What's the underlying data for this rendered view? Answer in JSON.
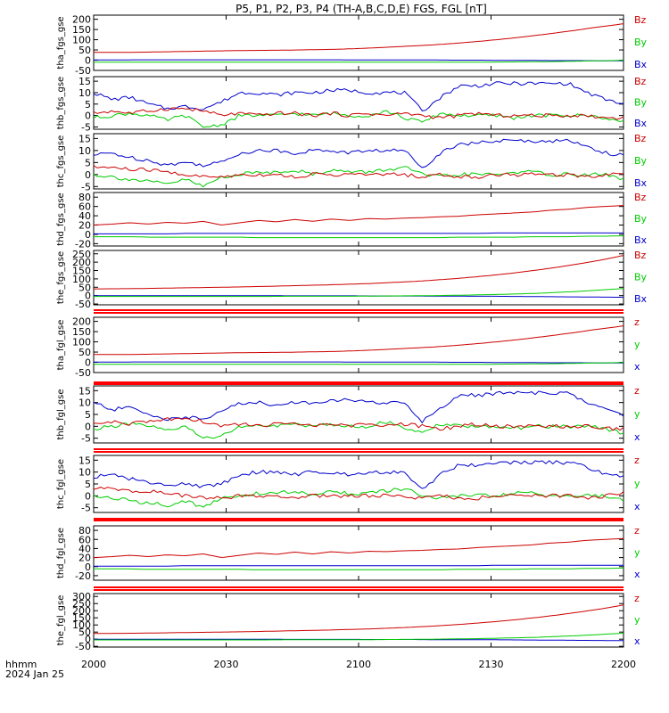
{
  "title": "P5, P1, P2, P3, P4 (TH-A,B,C,D,E) FGS, FGL [nT]",
  "time_axis": {
    "corner_label": "hhmm",
    "date": "2024 Jan 25",
    "ticks": [
      "2000",
      "2030",
      "2100",
      "2130",
      "2200"
    ]
  },
  "colors": {
    "x": "#0000cc",
    "y": "#00cc00",
    "z": "#cc0000",
    "flag": "#ff0000"
  },
  "chart_data": [
    {
      "type": "line",
      "ylabel": "tha_fgs_gse",
      "ylim": [
        -50,
        220
      ],
      "yticks": [
        "-50",
        "0",
        "50",
        "100",
        "150",
        "200"
      ],
      "legend": [
        "Bz",
        "By",
        "Bx"
      ],
      "series": [
        {
          "name": "Bz",
          "component": "z",
          "values": [
            38,
            38,
            39,
            41,
            43,
            45,
            47,
            48,
            49,
            51,
            53,
            57,
            62,
            68,
            74,
            82,
            92,
            103,
            116,
            130,
            146,
            163,
            178
          ]
        },
        {
          "name": "By",
          "component": "y",
          "values": [
            -10,
            -10,
            -10,
            -10,
            -10,
            -10,
            -10,
            -10,
            -10,
            -10,
            -10,
            -10,
            -10,
            -10,
            -10,
            -10,
            -10,
            -9,
            -8,
            -7,
            -5,
            -3,
            -1
          ]
        },
        {
          "name": "Bx",
          "component": "x",
          "values": [
            1,
            1,
            2,
            2,
            2,
            2,
            2,
            2,
            2,
            2,
            2,
            1,
            1,
            1,
            1,
            0,
            0,
            -1,
            -1,
            -2,
            -2,
            -3,
            -3
          ]
        }
      ]
    },
    {
      "type": "line",
      "ylabel": "thb_fgs_gse",
      "ylim": [
        -6,
        17
      ],
      "yticks": [
        "-5",
        "0",
        "5",
        "10",
        "15"
      ],
      "legend": [
        "Bz",
        "By",
        "Bx"
      ],
      "series": [
        {
          "name": "Bz",
          "component": "z",
          "values": [
            1,
            2,
            1,
            2,
            3,
            3,
            2,
            0,
            1,
            0,
            1,
            1,
            0,
            1,
            0,
            1,
            0,
            1,
            0,
            -1,
            0,
            1,
            0,
            0,
            0,
            0,
            0,
            0,
            -1,
            -1
          ]
        },
        {
          "name": "By",
          "component": "y",
          "values": [
            -1,
            0,
            1,
            0,
            -2,
            0,
            -5,
            -4,
            0,
            0,
            0,
            1,
            0,
            1,
            0,
            0,
            2,
            -1,
            -3,
            1,
            0,
            0,
            0,
            -1,
            0,
            0,
            0,
            0,
            -1,
            -3
          ]
        },
        {
          "name": "Bx",
          "component": "x",
          "values": [
            10,
            7,
            8,
            5,
            3,
            4,
            3,
            6,
            10,
            10,
            9,
            10,
            10,
            11,
            11,
            10,
            10,
            10,
            2,
            8,
            13,
            13,
            14,
            14,
            14,
            14,
            14,
            10,
            7,
            5
          ]
        }
      ]
    },
    {
      "type": "line",
      "ylabel": "thc_fgs_gse",
      "ylim": [
        -6,
        17
      ],
      "yticks": [
        "-5",
        "0",
        "5",
        "10",
        "15"
      ],
      "legend": [
        "Bz",
        "By",
        "Bx"
      ],
      "series": [
        {
          "name": "Bz",
          "component": "z",
          "values": [
            3,
            3,
            2,
            2,
            1,
            0,
            -1,
            -1,
            0,
            0,
            0,
            -1,
            0,
            0,
            0,
            0,
            0,
            0,
            -1,
            0,
            -1,
            -1,
            0,
            0,
            0,
            0,
            0,
            -1,
            0,
            1
          ]
        },
        {
          "name": "By",
          "component": "y",
          "values": [
            0,
            -1,
            -2,
            -3,
            -4,
            -2,
            -5,
            -1,
            0,
            1,
            1,
            2,
            0,
            2,
            1,
            1,
            2,
            3,
            0,
            -1,
            0,
            0,
            0,
            1,
            1,
            0,
            0,
            0,
            0,
            -2
          ]
        },
        {
          "name": "Bx",
          "component": "x",
          "values": [
            8,
            9,
            7,
            6,
            4,
            5,
            4,
            5,
            9,
            10,
            10,
            9,
            10,
            10,
            9,
            10,
            10,
            10,
            3,
            9,
            13,
            13,
            14,
            14,
            14,
            14,
            14,
            12,
            9,
            8
          ]
        }
      ]
    },
    {
      "type": "line",
      "ylabel": "thd_fgs_gse",
      "ylim": [
        -25,
        90
      ],
      "yticks": [
        "-20",
        "0",
        "20",
        "40",
        "60",
        "80"
      ],
      "legend": [
        "Bz",
        "By",
        "Bx"
      ],
      "series": [
        {
          "name": "Bz",
          "component": "z",
          "values": [
            20,
            22,
            25,
            22,
            26,
            24,
            28,
            20,
            25,
            30,
            27,
            32,
            28,
            33,
            30,
            34,
            33,
            35,
            36,
            38,
            39,
            42,
            44,
            46,
            48,
            52,
            54,
            58,
            60,
            62
          ]
        },
        {
          "name": "By",
          "component": "y",
          "values": [
            -5,
            -5,
            -5,
            -6,
            -6,
            -6,
            -6,
            -6,
            -6,
            -7,
            -7,
            -7,
            -7,
            -7,
            -7,
            -7,
            -7,
            -7,
            -7,
            -7,
            -6,
            -6,
            -6,
            -6,
            -5,
            -5,
            -5,
            -4,
            -4,
            -3
          ]
        },
        {
          "name": "Bx",
          "component": "x",
          "values": [
            1,
            1,
            1,
            1,
            1,
            2,
            2,
            2,
            2,
            2,
            2,
            2,
            2,
            2,
            2,
            2,
            2,
            2,
            2,
            2,
            2,
            2,
            3,
            3,
            3,
            3,
            3,
            3,
            3,
            3
          ]
        }
      ]
    },
    {
      "type": "line",
      "ylabel": "the_fgs_gse",
      "ylim": [
        -55,
        270
      ],
      "yticks": [
        "-50",
        "0",
        "50",
        "100",
        "150",
        "200",
        "250"
      ],
      "legend": [
        "Bz",
        "By",
        "Bx"
      ],
      "series": [
        {
          "name": "Bz",
          "component": "z",
          "values": [
            40,
            41,
            42,
            44,
            46,
            48,
            50,
            52,
            55,
            58,
            61,
            64,
            68,
            72,
            78,
            84,
            92,
            101,
            112,
            124,
            138,
            154,
            172,
            192,
            214,
            240
          ]
        },
        {
          "name": "By",
          "component": "y",
          "values": [
            -5,
            -5,
            -5,
            -5,
            -5,
            -5,
            -5,
            -5,
            -5,
            -4,
            -4,
            -4,
            -4,
            -3,
            -2,
            -1,
            0,
            2,
            4,
            7,
            10,
            14,
            20,
            26,
            34,
            42
          ]
        },
        {
          "name": "Bx",
          "component": "x",
          "values": [
            0,
            0,
            0,
            0,
            0,
            0,
            0,
            0,
            0,
            -1,
            -1,
            -1,
            -1,
            -2,
            -2,
            -2,
            -3,
            -3,
            -4,
            -4,
            -5,
            -6,
            -7,
            -8,
            -9,
            -10
          ]
        }
      ]
    },
    {
      "type": "line",
      "ylabel": "tha_fgl_gse",
      "ylim": [
        -50,
        220
      ],
      "yticks": [
        "-50",
        "0",
        "50",
        "100",
        "150",
        "200"
      ],
      "legend": [
        "z",
        "y",
        "x"
      ],
      "series": [
        {
          "name": "z",
          "component": "z",
          "values": [
            38,
            38,
            39,
            41,
            43,
            45,
            47,
            48,
            49,
            51,
            53,
            57,
            62,
            68,
            74,
            82,
            92,
            103,
            116,
            130,
            146,
            163,
            178
          ]
        },
        {
          "name": "y",
          "component": "y",
          "values": [
            -10,
            -10,
            -10,
            -10,
            -10,
            -10,
            -10,
            -10,
            -10,
            -10,
            -10,
            -10,
            -10,
            -10,
            -10,
            -10,
            -10,
            -9,
            -8,
            -7,
            -5,
            -3,
            -1
          ]
        },
        {
          "name": "x",
          "component": "x",
          "values": [
            1,
            1,
            2,
            2,
            2,
            2,
            2,
            2,
            2,
            2,
            2,
            1,
            1,
            1,
            1,
            0,
            0,
            -1,
            -1,
            -2,
            -2,
            -3,
            -3
          ]
        }
      ]
    },
    {
      "type": "line",
      "ylabel": "thb_fgl_gse",
      "ylim": [
        -7,
        17
      ],
      "yticks": [
        "-5",
        "0",
        "5",
        "10",
        "15"
      ],
      "legend": [
        "z",
        "y",
        "x"
      ],
      "series": [
        {
          "name": "z",
          "component": "z",
          "values": [
            1,
            2,
            1,
            2,
            3,
            3,
            2,
            0,
            1,
            0,
            1,
            1,
            0,
            1,
            0,
            1,
            0,
            1,
            0,
            -1,
            0,
            1,
            0,
            0,
            0,
            0,
            0,
            0,
            -1,
            -1
          ]
        },
        {
          "name": "y",
          "component": "y",
          "values": [
            -1,
            0,
            1,
            0,
            -2,
            0,
            -5,
            -4,
            0,
            0,
            0,
            1,
            0,
            1,
            0,
            0,
            2,
            -1,
            -3,
            1,
            0,
            0,
            0,
            -1,
            0,
            0,
            0,
            0,
            -1,
            -3
          ]
        },
        {
          "name": "x",
          "component": "x",
          "values": [
            10,
            7,
            8,
            5,
            3,
            4,
            3,
            6,
            10,
            10,
            9,
            10,
            10,
            11,
            11,
            10,
            10,
            10,
            2,
            8,
            13,
            13,
            14,
            14,
            14,
            14,
            14,
            10,
            7,
            5
          ]
        }
      ]
    },
    {
      "type": "line",
      "ylabel": "thc_fgl_gse",
      "ylim": [
        -7,
        17
      ],
      "yticks": [
        "-5",
        "0",
        "5",
        "10",
        "15"
      ],
      "legend": [
        "z",
        "y",
        "x"
      ],
      "series": [
        {
          "name": "z",
          "component": "z",
          "values": [
            3,
            3,
            2,
            2,
            1,
            0,
            -1,
            -1,
            0,
            0,
            0,
            -1,
            0,
            0,
            0,
            0,
            0,
            0,
            -1,
            0,
            -1,
            -1,
            0,
            0,
            0,
            0,
            0,
            -1,
            0,
            1
          ]
        },
        {
          "name": "y",
          "component": "y",
          "values": [
            0,
            -1,
            -2,
            -3,
            -4,
            -2,
            -5,
            -1,
            0,
            1,
            1,
            2,
            0,
            2,
            1,
            1,
            2,
            3,
            0,
            -1,
            0,
            0,
            0,
            1,
            1,
            0,
            0,
            0,
            0,
            -2
          ]
        },
        {
          "name": "x",
          "component": "x",
          "values": [
            8,
            9,
            7,
            6,
            4,
            5,
            4,
            5,
            9,
            10,
            10,
            9,
            10,
            10,
            9,
            10,
            10,
            10,
            3,
            9,
            13,
            13,
            14,
            14,
            14,
            14,
            14,
            12,
            9,
            8
          ]
        }
      ]
    },
    {
      "type": "line",
      "ylabel": "thd_fgl_gse",
      "ylim": [
        -30,
        90
      ],
      "yticks": [
        "-20",
        "0",
        "20",
        "40",
        "60",
        "80"
      ],
      "legend": [
        "z",
        "y",
        "x"
      ],
      "series": [
        {
          "name": "z",
          "component": "z",
          "values": [
            20,
            22,
            25,
            22,
            26,
            24,
            28,
            20,
            25,
            30,
            27,
            32,
            28,
            33,
            30,
            34,
            33,
            35,
            36,
            38,
            39,
            42,
            44,
            46,
            48,
            52,
            54,
            58,
            60,
            62
          ]
        },
        {
          "name": "y",
          "component": "y",
          "values": [
            -5,
            -5,
            -5,
            -6,
            -6,
            -6,
            -6,
            -6,
            -6,
            -7,
            -7,
            -7,
            -7,
            -7,
            -7,
            -7,
            -7,
            -7,
            -7,
            -7,
            -6,
            -6,
            -6,
            -6,
            -5,
            -5,
            -5,
            -4,
            -4,
            -3
          ]
        },
        {
          "name": "x",
          "component": "x",
          "values": [
            1,
            1,
            1,
            1,
            1,
            2,
            2,
            2,
            2,
            2,
            2,
            2,
            2,
            2,
            2,
            2,
            2,
            2,
            2,
            2,
            2,
            2,
            3,
            3,
            3,
            3,
            3,
            3,
            3,
            3
          ]
        }
      ]
    },
    {
      "type": "line",
      "ylabel": "the_fgl_gse",
      "ylim": [
        -55,
        320
      ],
      "yticks": [
        "-50",
        "0",
        "50",
        "100",
        "150",
        "200",
        "250",
        "300"
      ],
      "legend": [
        "z",
        "y",
        "x"
      ],
      "series": [
        {
          "name": "z",
          "component": "z",
          "values": [
            40,
            41,
            42,
            44,
            46,
            48,
            50,
            52,
            55,
            58,
            61,
            64,
            68,
            72,
            78,
            84,
            92,
            101,
            112,
            124,
            138,
            154,
            172,
            192,
            214,
            240
          ]
        },
        {
          "name": "y",
          "component": "y",
          "values": [
            -5,
            -5,
            -5,
            -5,
            -5,
            -5,
            -5,
            -5,
            -5,
            -4,
            -4,
            -4,
            -4,
            -3,
            -2,
            -1,
            0,
            2,
            4,
            7,
            10,
            14,
            20,
            26,
            34,
            42
          ]
        },
        {
          "name": "x",
          "component": "x",
          "values": [
            0,
            0,
            0,
            0,
            0,
            0,
            0,
            0,
            0,
            -1,
            -1,
            -1,
            -1,
            -2,
            -2,
            -2,
            -3,
            -3,
            -4,
            -4,
            -5,
            -6,
            -7,
            -8,
            -9,
            -10
          ]
        }
      ]
    }
  ]
}
